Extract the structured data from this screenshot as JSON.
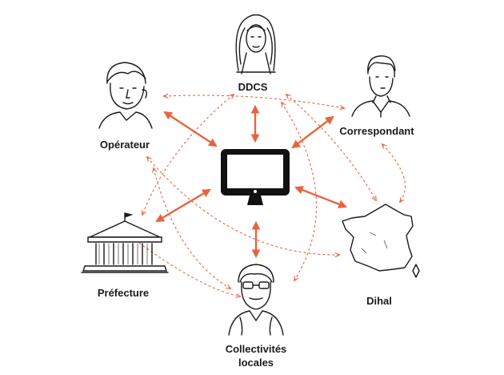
{
  "diagram": {
    "nodes": {
      "ddcs": {
        "label": "DDCS",
        "icon": "woman-long-hair-icon"
      },
      "correspondant": {
        "label": "Correspondant",
        "icon": "man-portrait-icon"
      },
      "operateur": {
        "label": "Opérateur",
        "icon": "young-man-portrait-icon"
      },
      "prefecture": {
        "label": "Préfecture",
        "icon": "prefecture-building-icon"
      },
      "dihal": {
        "label": "Dihal",
        "icon": "france-map-icon"
      },
      "collectivites": {
        "label_line1": "Collectivités",
        "label_line2": "locales",
        "icon": "woman-glasses-icon"
      },
      "center": {
        "icon": "computer-monitor-icon"
      }
    },
    "colors": {
      "arrow": "#e8643f",
      "ink": "#1a1a1a",
      "screen": "#111111"
    }
  }
}
